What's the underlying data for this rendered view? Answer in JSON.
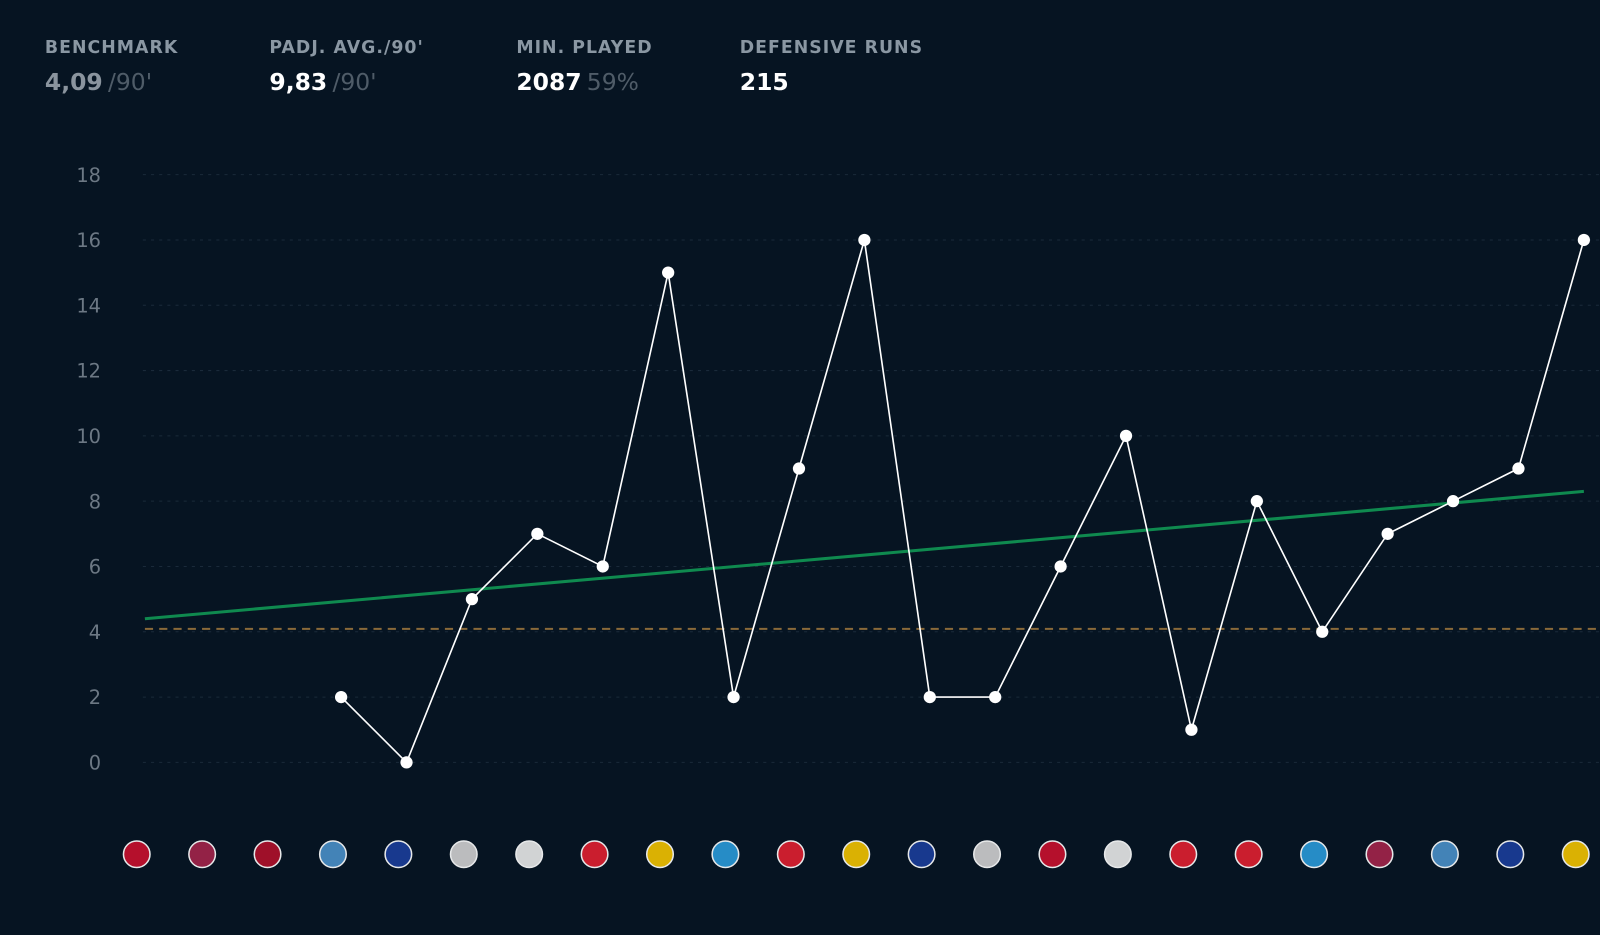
{
  "stats": [
    {
      "label": "BENCHMARK",
      "value": "4,09",
      "unit": "/90'"
    },
    {
      "label": "PADJ. AVG./90'",
      "value": "9,83",
      "unit": "/90'"
    },
    {
      "label": "MIN. PLAYED",
      "value": "2087",
      "unit": "59%"
    },
    {
      "label": "DEFENSIVE RUNS",
      "value": "215"
    }
  ],
  "chart_data": {
    "type": "line",
    "categories": [
      null,
      null,
      null,
      null,
      null,
      null,
      null,
      null,
      null,
      null,
      null,
      null,
      null,
      null,
      null,
      null,
      null,
      null,
      null,
      null,
      null,
      null,
      null
    ],
    "series": [
      {
        "color": "#ffffff",
        "values": [
          null,
          null,
          null,
          2,
          0,
          5,
          7,
          6,
          15,
          2,
          9,
          16,
          2,
          2,
          6,
          10,
          1,
          8,
          4,
          7,
          8,
          9,
          16
        ]
      }
    ],
    "trend": [
      4.4,
      8.3
    ],
    "trend_color": "#0f8a4f",
    "benchmark": 4.09,
    "benchmark_color": "#8a6a3a",
    "ylim": [
      0,
      18
    ],
    "yticks": [
      0,
      2,
      4,
      6,
      8,
      10,
      12,
      14,
      16,
      18
    ],
    "grid": true
  }
}
